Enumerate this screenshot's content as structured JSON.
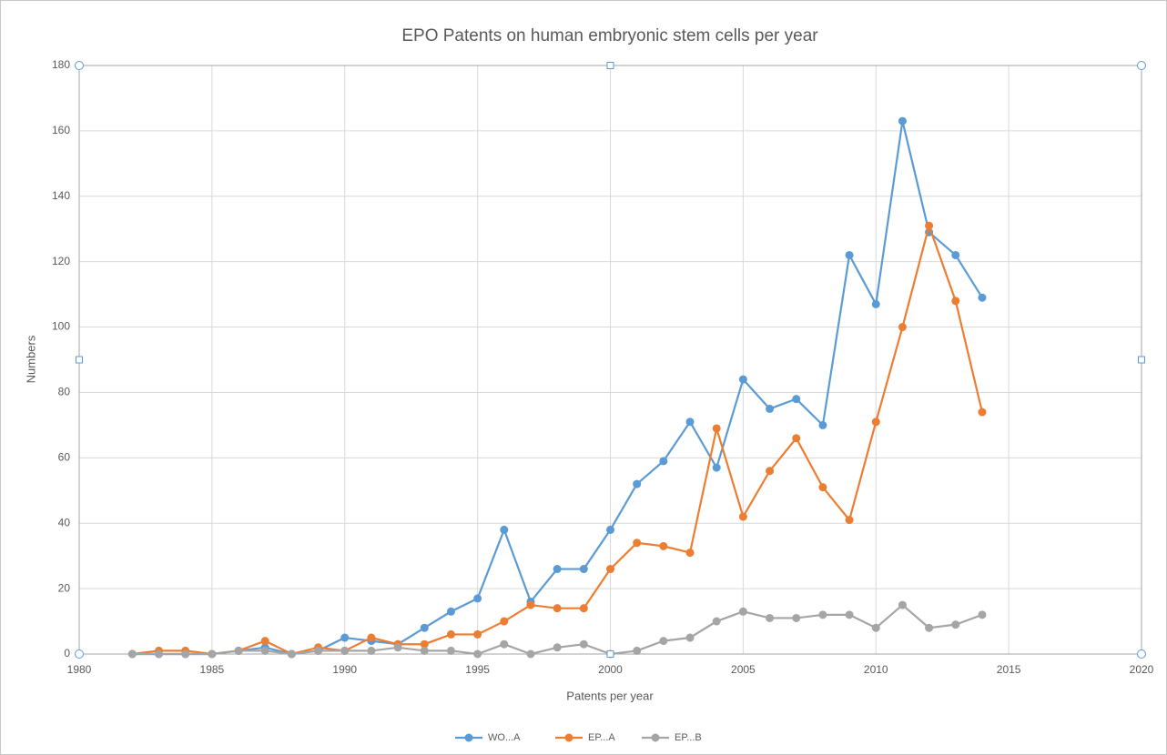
{
  "chart_data": {
    "type": "line",
    "title": "EPO Patents on human  embryonic stem cells per year",
    "xlabel": "Patents per year",
    "ylabel": "Numbers",
    "x": [
      1982,
      1983,
      1984,
      1985,
      1986,
      1987,
      1988,
      1989,
      1990,
      1991,
      1992,
      1993,
      1994,
      1995,
      1996,
      1997,
      1998,
      1999,
      2000,
      2001,
      2002,
      2003,
      2004,
      2005,
      2006,
      2007,
      2008,
      2009,
      2010,
      2011,
      2012,
      2013,
      2014
    ],
    "series": [
      {
        "name": "WO...A",
        "color": "#5b9bd5",
        "values": [
          0,
          0,
          0,
          0,
          1,
          2,
          0,
          1,
          5,
          4,
          3,
          8,
          13,
          17,
          38,
          16,
          26,
          26,
          38,
          52,
          59,
          71,
          57,
          84,
          75,
          78,
          70,
          122,
          107,
          163,
          129,
          122,
          109
        ]
      },
      {
        "name": "EP...A",
        "color": "#ed7d31",
        "values": [
          0,
          1,
          1,
          0,
          1,
          4,
          0,
          2,
          1,
          5,
          3,
          3,
          6,
          6,
          10,
          15,
          14,
          14,
          26,
          34,
          33,
          31,
          69,
          42,
          56,
          66,
          51,
          41,
          71,
          100,
          131,
          108,
          74
        ]
      },
      {
        "name": "EP...B",
        "color": "#a5a5a5",
        "values": [
          0,
          0,
          0,
          0,
          1,
          1,
          0,
          1,
          1,
          1,
          2,
          1,
          1,
          0,
          3,
          0,
          2,
          3,
          0,
          1,
          4,
          5,
          10,
          13,
          11,
          11,
          12,
          12,
          8,
          15,
          8,
          9,
          12
        ]
      }
    ],
    "xlim": [
      1980,
      2020
    ],
    "xticks": [
      1980,
      1985,
      1990,
      1995,
      2000,
      2005,
      2010,
      2015,
      2020
    ],
    "ylim": [
      0,
      180
    ],
    "yticks": [
      0,
      20,
      40,
      60,
      80,
      100,
      120,
      140,
      160,
      180
    ],
    "grid": true,
    "legend": "bottom"
  }
}
